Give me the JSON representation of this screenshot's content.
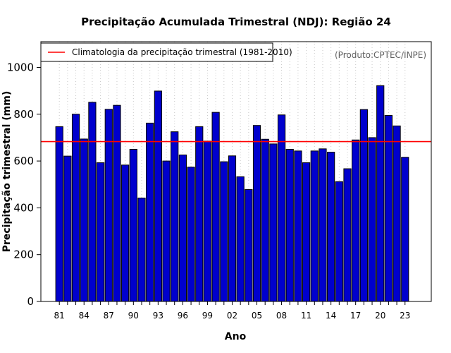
{
  "chart_data": {
    "type": "bar",
    "title": "Precipitação Acumulada Trimestral (NDJ): Região 24",
    "xlabel": "Ano",
    "ylabel": "Precipitação trimestral (mm)",
    "ylim": [
      0,
      1110
    ],
    "yticks": [
      0,
      200,
      400,
      600,
      800,
      1000
    ],
    "source_note": "(Produto:CPTEC/INPE)",
    "legend": {
      "label": "Climatologia da precipitação trimestral (1981-2010)",
      "color": "#ff0000",
      "placement": "top-left"
    },
    "climatology_value": 683,
    "bar_color": "#0000cd",
    "tick_labels": [
      "81",
      "84",
      "87",
      "90",
      "93",
      "96",
      "99",
      "02",
      "05",
      "08",
      "11",
      "14",
      "17",
      "20",
      "23"
    ],
    "categories": [
      "81",
      "82",
      "83",
      "84",
      "85",
      "86",
      "87",
      "88",
      "89",
      "90",
      "91",
      "92",
      "93",
      "94",
      "95",
      "96",
      "97",
      "98",
      "99",
      "00",
      "01",
      "02",
      "03",
      "04",
      "05",
      "06",
      "07",
      "08",
      "09",
      "10",
      "11",
      "12",
      "13",
      "14",
      "15",
      "16",
      "17",
      "18",
      "19",
      "20",
      "21",
      "22",
      "23"
    ],
    "values": [
      747,
      621,
      800,
      694,
      851,
      593,
      821,
      838,
      583,
      650,
      442,
      762,
      899,
      600,
      725,
      626,
      574,
      747,
      685,
      808,
      597,
      622,
      533,
      478,
      752,
      693,
      673,
      797,
      650,
      643,
      593,
      643,
      652,
      638,
      512,
      567,
      690,
      820,
      700,
      922,
      795,
      750,
      616
    ]
  }
}
